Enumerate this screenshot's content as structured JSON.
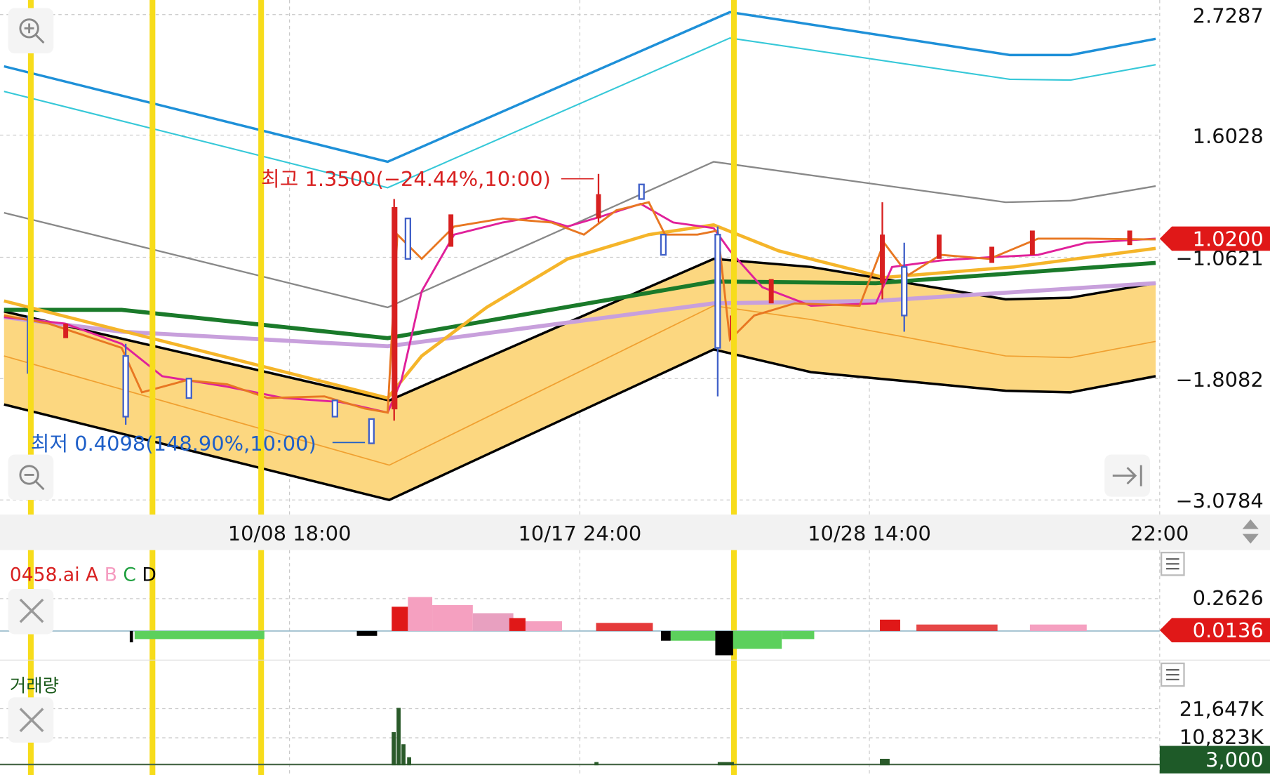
{
  "price_panel": {
    "axis_labels": [
      "2.7287",
      "1.6028",
      "−1.0621",
      "−1.8082",
      "−3.0784"
    ],
    "current_price": "1.0200",
    "high_annotation": "최고 1.3500(−24.44%,10:00)",
    "low_annotation": "최저 0.4098(148.90%,10:00)"
  },
  "time_axis": {
    "labels": [
      "10/08 18:00",
      "10/17 24:00",
      "10/28 14:00",
      "22:00"
    ]
  },
  "indicator_panel": {
    "name": "0458.ai",
    "legend": [
      "A",
      "B",
      "C",
      "D"
    ],
    "axis_label": "0.2626",
    "current_value": "0.0136"
  },
  "volume_panel": {
    "name": "거래량",
    "axis_labels": [
      "21,647K",
      "10,823K"
    ],
    "current_value": "3,000"
  }
}
